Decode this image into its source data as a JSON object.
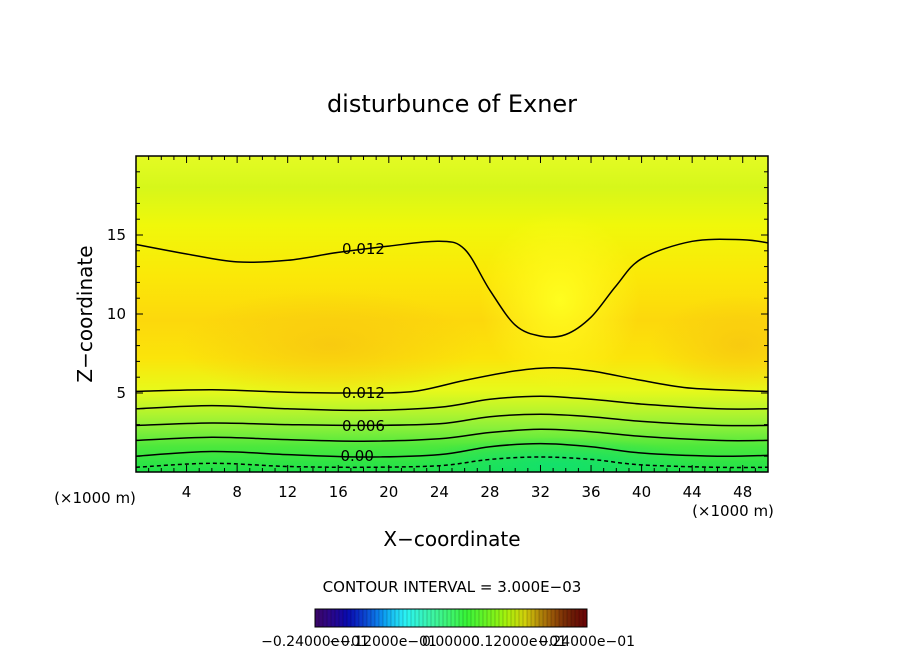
{
  "chart_data": {
    "type": "contour",
    "title": "disturbunce of Exner",
    "xlabel": "X−coordinate",
    "ylabel": "Z−coordinate",
    "x_unit_left": "(×1000 m)",
    "x_unit_right": "(×1000 m)",
    "xlim": [
      0,
      50
    ],
    "ylim": [
      0,
      20
    ],
    "x_ticks": [
      4,
      8,
      12,
      16,
      20,
      24,
      28,
      32,
      36,
      40,
      44,
      48
    ],
    "y_ticks": [
      5,
      10,
      15
    ],
    "contour_interval_text": "CONTOUR INTERVAL = 3.000E−03",
    "contour_labels": [
      {
        "text": "0.012",
        "x": 18,
        "z": 14.1
      },
      {
        "text": "0.012",
        "x": 18,
        "z": 5.0
      },
      {
        "text": "0.006",
        "x": 18,
        "z": 2.9
      },
      {
        "text": "0.00",
        "x": 17.5,
        "z": 1.0
      }
    ],
    "contours": [
      {
        "level": 0.012,
        "style": "solid",
        "points": [
          [
            0,
            14.4
          ],
          [
            4,
            13.8
          ],
          [
            8,
            13.3
          ],
          [
            12,
            13.4
          ],
          [
            16,
            13.9
          ],
          [
            20,
            14.3
          ],
          [
            24,
            14.6
          ],
          [
            26,
            14.1
          ],
          [
            28,
            11.5
          ],
          [
            30,
            9.3
          ],
          [
            32,
            8.6
          ],
          [
            34,
            8.7
          ],
          [
            36,
            9.8
          ],
          [
            38,
            11.8
          ],
          [
            40,
            13.5
          ],
          [
            44,
            14.6
          ],
          [
            48,
            14.7
          ],
          [
            50,
            14.5
          ]
        ]
      },
      {
        "level": 0.012,
        "style": "solid",
        "points": [
          [
            0,
            5.1
          ],
          [
            6,
            5.2
          ],
          [
            12,
            5.05
          ],
          [
            18,
            5.0
          ],
          [
            22,
            5.1
          ],
          [
            26,
            5.8
          ],
          [
            30,
            6.4
          ],
          [
            33,
            6.6
          ],
          [
            36,
            6.4
          ],
          [
            40,
            5.8
          ],
          [
            44,
            5.3
          ],
          [
            50,
            5.1
          ]
        ]
      },
      {
        "level": 0.009,
        "style": "solid",
        "points": [
          [
            0,
            4.0
          ],
          [
            6,
            4.2
          ],
          [
            12,
            4.0
          ],
          [
            18,
            3.9
          ],
          [
            24,
            4.1
          ],
          [
            28,
            4.6
          ],
          [
            32,
            4.8
          ],
          [
            36,
            4.6
          ],
          [
            40,
            4.3
          ],
          [
            46,
            4.0
          ],
          [
            50,
            4.0
          ]
        ]
      },
      {
        "level": 0.006,
        "style": "solid",
        "points": [
          [
            0,
            2.95
          ],
          [
            6,
            3.1
          ],
          [
            12,
            3.0
          ],
          [
            18,
            2.95
          ],
          [
            24,
            3.05
          ],
          [
            28,
            3.5
          ],
          [
            32,
            3.65
          ],
          [
            36,
            3.5
          ],
          [
            40,
            3.2
          ],
          [
            46,
            2.95
          ],
          [
            50,
            2.95
          ]
        ]
      },
      {
        "level": 0.003,
        "style": "solid",
        "points": [
          [
            0,
            2.0
          ],
          [
            6,
            2.2
          ],
          [
            12,
            2.05
          ],
          [
            18,
            1.95
          ],
          [
            24,
            2.1
          ],
          [
            28,
            2.5
          ],
          [
            32,
            2.7
          ],
          [
            36,
            2.55
          ],
          [
            40,
            2.25
          ],
          [
            46,
            2.0
          ],
          [
            50,
            2.0
          ]
        ]
      },
      {
        "level": 0.0,
        "style": "solid",
        "points": [
          [
            0,
            1.0
          ],
          [
            6,
            1.3
          ],
          [
            12,
            1.1
          ],
          [
            18,
            0.95
          ],
          [
            24,
            1.1
          ],
          [
            28,
            1.6
          ],
          [
            32,
            1.8
          ],
          [
            36,
            1.6
          ],
          [
            40,
            1.2
          ],
          [
            46,
            1.0
          ],
          [
            50,
            1.05
          ]
        ]
      },
      {
        "level": -0.003,
        "style": "dashed",
        "points": [
          [
            0,
            0.3
          ],
          [
            6,
            0.55
          ],
          [
            12,
            0.35
          ],
          [
            18,
            0.3
          ],
          [
            24,
            0.4
          ],
          [
            28,
            0.8
          ],
          [
            32,
            0.95
          ],
          [
            36,
            0.8
          ],
          [
            40,
            0.45
          ],
          [
            46,
            0.3
          ],
          [
            50,
            0.3
          ]
        ]
      }
    ],
    "colorbar_labels": [
      "−0.24000e−01",
      "−0.12000e−01",
      "0.00000",
      "0.12000e−01",
      "0.24000e−01"
    ],
    "colorbar_range": [
      -0.024,
      0.024
    ]
  }
}
